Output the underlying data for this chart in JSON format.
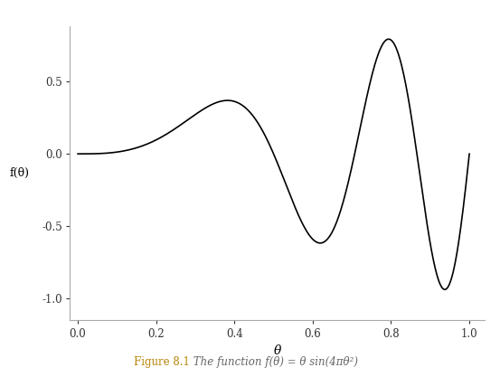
{
  "title": "",
  "xlabel": "θ",
  "ylabel": "f(θ)",
  "xlim": [
    -0.02,
    1.04
  ],
  "ylim": [
    -1.15,
    0.88
  ],
  "xticks": [
    0.0,
    0.2,
    0.4,
    0.6,
    0.8,
    1.0
  ],
  "yticks": [
    -1.0,
    -0.5,
    0.0,
    0.5
  ],
  "line_color": "#000000",
  "line_width": 1.2,
  "bg_color": "#ffffff",
  "caption_bold": "Figure 8.1",
  "caption_italic": " The function f(θ) = θ sin(4πθ²)",
  "caption_color": "#b8860b",
  "caption_text_color": "#666666",
  "n_points": 1000
}
